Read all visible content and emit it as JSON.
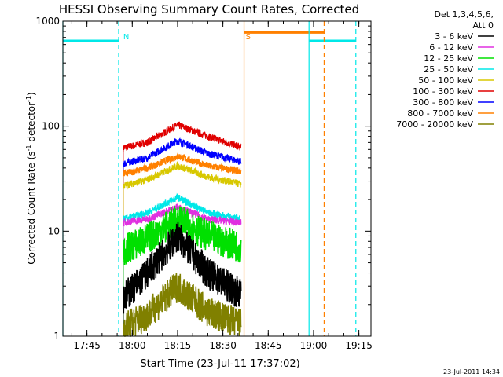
{
  "chart_data": {
    "type": "line",
    "title": "HESSI Observing Summary Count Rates, Corrected",
    "xlabel": "Start Time (23-Jul-11 17:37:02)",
    "ylabel": "Corrected Count Rate (s⁻¹ detector⁻¹)",
    "ylabel_parts": {
      "main": "Corrected Count Rate (s",
      "exp1": "-1",
      "mid": " detector",
      "exp2": "-1",
      "end": ")"
    },
    "yscale": "log",
    "ylim": [
      1,
      1000
    ],
    "yticks": [
      1,
      10,
      100,
      1000
    ],
    "ytick_labels": [
      "1",
      "10",
      "100",
      "1000"
    ],
    "xlim": [
      "17:37:02",
      "19:19:00"
    ],
    "xticks": [
      "17:45",
      "18:00",
      "18:15",
      "18:30",
      "18:45",
      "19:00",
      "19:15"
    ],
    "footer": "23-Jul-2011 14:34",
    "legend": {
      "position": "top-right",
      "header": [
        "Det 1,3,4,5,6,",
        "Att 0"
      ],
      "entries": [
        {
          "label": "3 - 6 keV",
          "color": "#000000"
        },
        {
          "label": "6 - 12 keV",
          "color": "#e030e0"
        },
        {
          "label": "12 - 25 keV",
          "color": "#00e000"
        },
        {
          "label": "25 - 50 keV",
          "color": "#00e8e8"
        },
        {
          "label": "50 - 100 keV",
          "color": "#d8c800"
        },
        {
          "label": "100 - 300 keV",
          "color": "#e00000"
        },
        {
          "label": "300 - 800 keV",
          "color": "#0000ff"
        },
        {
          "label": "800 - 7000 keV",
          "color": "#ff8000"
        },
        {
          "label": "7000 - 20000 keV",
          "color": "#808000"
        }
      ]
    },
    "observing_window": [
      "17:57:00",
      "18:37:00"
    ],
    "series": [
      {
        "name": "100 - 300 keV",
        "color": "#e00000",
        "style": "band",
        "x": [
          "17:57",
          "18:05",
          "18:15",
          "18:25",
          "18:36"
        ],
        "y": [
          62,
          70,
          103,
          80,
          63
        ]
      },
      {
        "name": "300 - 800 keV",
        "color": "#0000ff",
        "style": "band",
        "x": [
          "17:57",
          "18:05",
          "18:15",
          "18:25",
          "18:36"
        ],
        "y": [
          44,
          50,
          73,
          55,
          46
        ]
      },
      {
        "name": "800 - 7000 keV",
        "color": "#ff8000",
        "style": "band",
        "x": [
          "17:57",
          "18:05",
          "18:15",
          "18:25",
          "18:36"
        ],
        "y": [
          35,
          40,
          52,
          42,
          37
        ]
      },
      {
        "name": "50 - 100 keV",
        "color": "#d8c800",
        "style": "band",
        "x": [
          "17:57",
          "18:05",
          "18:15",
          "18:25",
          "18:36"
        ],
        "y": [
          27,
          31,
          42,
          33,
          28
        ]
      },
      {
        "name": "25 - 50 keV",
        "color": "#00e8e8",
        "style": "band",
        "x": [
          "17:57",
          "18:05",
          "18:15",
          "18:25",
          "18:36"
        ],
        "y": [
          13,
          15,
          21,
          15,
          13
        ]
      },
      {
        "name": "6 - 12 keV",
        "color": "#e030e0",
        "style": "band",
        "x": [
          "17:57",
          "18:05",
          "18:15",
          "18:25",
          "18:36"
        ],
        "y": [
          12,
          13,
          17,
          13,
          12
        ]
      },
      {
        "name": "12 - 25 keV",
        "color": "#00e000",
        "style": "noisy",
        "x": [
          "17:57",
          "18:05",
          "18:15",
          "18:25",
          "18:36"
        ],
        "y": [
          6.5,
          8.5,
          13,
          9,
          7
        ]
      },
      {
        "name": "3 - 6 keV",
        "color": "#000000",
        "style": "noisy",
        "x": [
          "17:57",
          "18:05",
          "18:15",
          "18:25",
          "18:36"
        ],
        "y": [
          2.3,
          4,
          9,
          4,
          2.5
        ]
      },
      {
        "name": "7000 - 20000 keV",
        "color": "#808000",
        "style": "noisy",
        "x": [
          "17:57",
          "18:05",
          "18:15",
          "18:25",
          "18:36"
        ],
        "y": [
          1.2,
          1.6,
          3,
          1.7,
          1.3
        ]
      }
    ],
    "annotations": [
      {
        "text": "N",
        "color": "#00e8e8",
        "x": "17:56:00"
      },
      {
        "text": "S",
        "color": "#ff8000",
        "x": "18:36:30"
      }
    ],
    "state_bars": [
      {
        "name": "night",
        "color": "#00e8e8",
        "y": 650,
        "x": [
          "17:37:02",
          "17:55:30"
        ]
      },
      {
        "name": "saa",
        "color": "#ff8000",
        "y": 780,
        "x": [
          "18:37:00",
          "19:03:30"
        ]
      },
      {
        "name": "night",
        "color": "#00e8e8",
        "y": 650,
        "x": [
          "18:58:30",
          "19:14:00"
        ]
      }
    ],
    "vlines": [
      {
        "color": "#00e8e8",
        "style": "solid",
        "x": "17:37:02"
      },
      {
        "color": "#00e8e8",
        "style": "dashed",
        "x": "17:55:30"
      },
      {
        "color": "#ff8000",
        "style": "solid",
        "x": "18:37:00"
      },
      {
        "color": "#00e8e8",
        "style": "solid",
        "x": "18:58:30"
      },
      {
        "color": "#ff8000",
        "style": "dashed",
        "x": "19:03:30"
      },
      {
        "color": "#00e8e8",
        "style": "dashed",
        "x": "19:14:00"
      }
    ]
  }
}
